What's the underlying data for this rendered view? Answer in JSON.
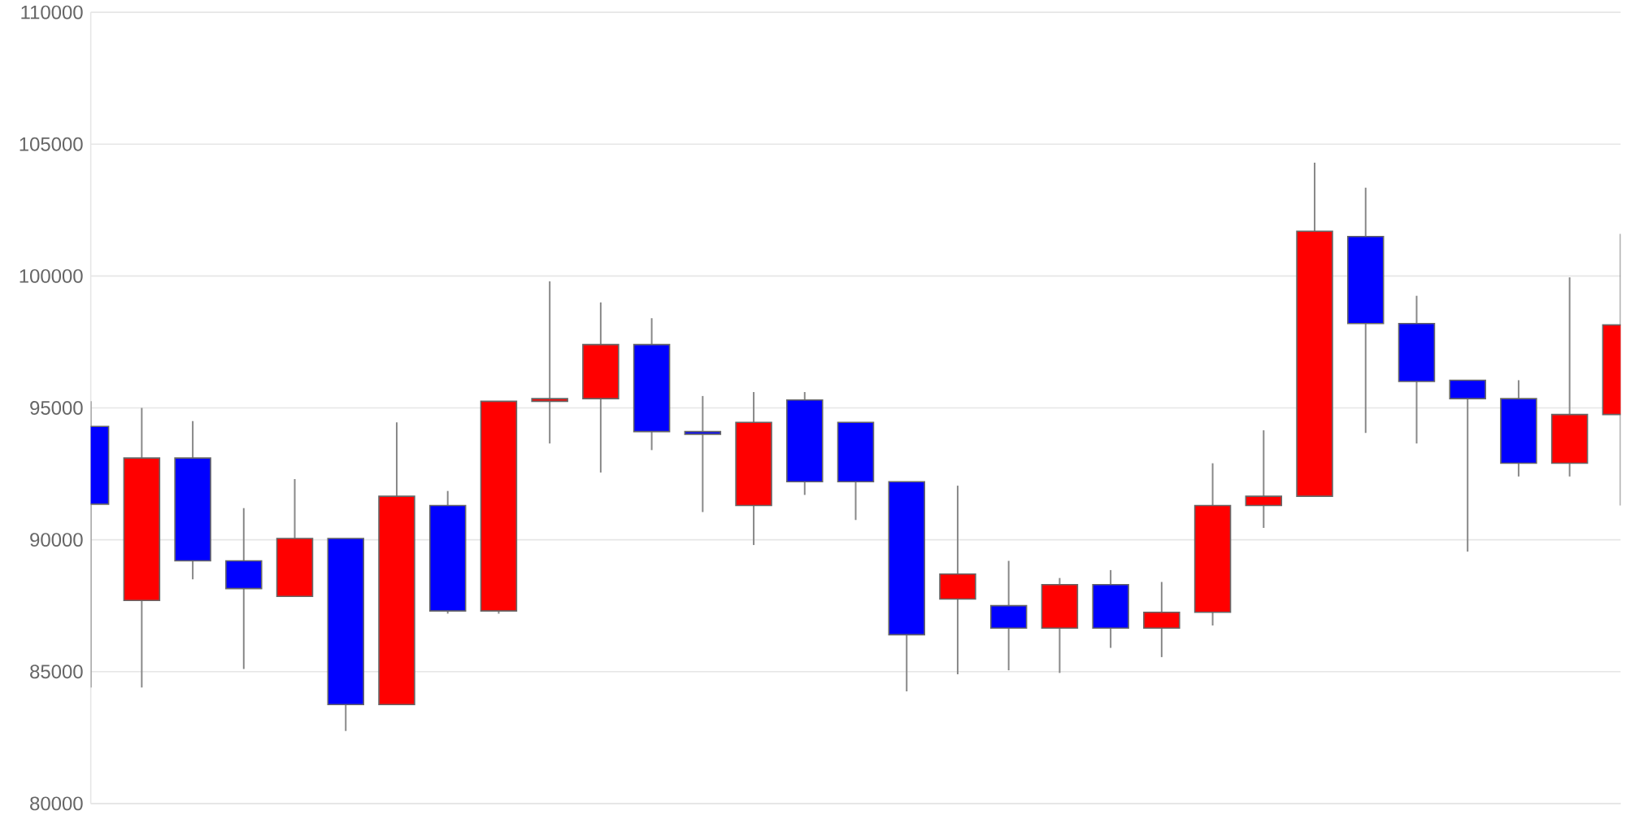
{
  "chart_data": {
    "type": "candlestick",
    "categories": [
      null,
      null,
      null,
      null,
      null,
      null,
      null,
      null,
      null,
      null,
      null,
      null,
      null,
      null,
      null,
      null,
      null,
      null,
      null,
      null,
      null,
      null,
      null,
      null,
      null,
      null,
      null,
      null,
      null,
      null,
      null
    ],
    "ohlc": [
      [
        94300,
        95250,
        84400,
        91350
      ],
      [
        87700,
        95000,
        84400,
        93100
      ],
      [
        93100,
        94500,
        88500,
        89200
      ],
      [
        89200,
        91200,
        85100,
        88150
      ],
      [
        87850,
        92300,
        87850,
        90050
      ],
      [
        90050,
        90050,
        82750,
        83750
      ],
      [
        83750,
        94450,
        83750,
        91650
      ],
      [
        91300,
        91850,
        87200,
        87300
      ],
      [
        87300,
        95250,
        87200,
        95250
      ],
      [
        95250,
        99800,
        93650,
        95350
      ],
      [
        95350,
        99000,
        92550,
        97400
      ],
      [
        97400,
        98400,
        93400,
        94100
      ],
      [
        94100,
        95450,
        91050,
        94000
      ],
      [
        91300,
        95600,
        89800,
        94450
      ],
      [
        95300,
        95600,
        91700,
        92200
      ],
      [
        94450,
        94450,
        90750,
        92200
      ],
      [
        92200,
        92200,
        84250,
        86400
      ],
      [
        87750,
        92050,
        84900,
        88700
      ],
      [
        87500,
        89200,
        85050,
        86650
      ],
      [
        86650,
        88550,
        84950,
        88300
      ],
      [
        88300,
        88850,
        85900,
        86650
      ],
      [
        86650,
        88400,
        85550,
        87250
      ],
      [
        87250,
        92900,
        86750,
        91300
      ],
      [
        91300,
        94150,
        90450,
        91650
      ],
      [
        91650,
        104300,
        91650,
        101700
      ],
      [
        101500,
        103350,
        94050,
        98200
      ],
      [
        98200,
        99250,
        93650,
        96000
      ],
      [
        96050,
        96050,
        89550,
        95350
      ],
      [
        95350,
        96050,
        92400,
        92900
      ],
      [
        92900,
        99950,
        92400,
        94750
      ],
      [
        94750,
        101600,
        91300,
        98150
      ]
    ],
    "colors": [
      "#0000ff",
      "#ff0000",
      "#0000ff",
      "#0000ff",
      "#ff0000",
      "#0000ff",
      "#ff0000",
      "#0000ff",
      "#ff0000",
      "#ff0000",
      "#ff0000",
      "#0000ff",
      "#0000ff",
      "#ff0000",
      "#0000ff",
      "#0000ff",
      "#0000ff",
      "#ff0000",
      "#0000ff",
      "#ff0000",
      "#0000ff",
      "#ff0000",
      "#ff0000",
      "#ff0000",
      "#ff0000",
      "#0000ff",
      "#0000ff",
      "#0000ff",
      "#0000ff",
      "#ff0000",
      "#ff0000"
    ],
    "ylim": [
      80000,
      110000
    ],
    "yticks": [
      80000,
      85000,
      90000,
      95000,
      100000,
      105000,
      110000
    ],
    "grid": "y"
  }
}
